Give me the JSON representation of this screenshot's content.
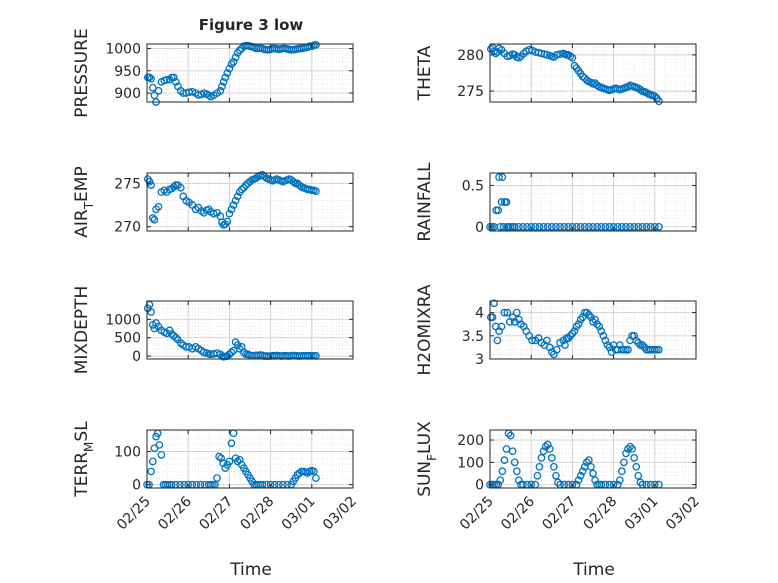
{
  "figure": {
    "title": "Figure 3 low",
    "xlabel": "Time",
    "x_ticks": [
      "02/25",
      "02/26",
      "02/27",
      "02/28",
      "03/01",
      "03/02"
    ],
    "x_tick_days": [
      0,
      1,
      2,
      3,
      4,
      5
    ],
    "x_axis_start": "02/25",
    "x_axis_end": "03/02",
    "marker_color": "#0072BD"
  },
  "chart_data": [
    {
      "type": "scatter",
      "ylabel_parts": [
        "PRESSURE"
      ],
      "ylim": [
        880,
        1010
      ],
      "yticks": [
        900,
        950,
        1000
      ],
      "x": [
        0.02,
        0.06,
        0.1,
        0.14,
        0.18,
        0.22,
        0.28,
        0.35,
        0.42,
        0.48,
        0.55,
        0.6,
        0.65,
        0.7,
        0.75,
        0.82,
        0.88,
        0.95,
        1.02,
        1.1,
        1.18,
        1.25,
        1.32,
        1.38,
        1.45,
        1.5,
        1.55,
        1.62,
        1.7,
        1.78,
        1.82,
        1.86,
        1.9,
        1.95,
        2.0,
        2.05,
        2.1,
        2.15,
        2.2,
        2.25,
        2.3,
        2.35,
        2.4,
        2.45,
        2.5,
        2.55,
        2.6,
        2.65,
        2.7,
        2.75,
        2.8,
        2.85,
        2.9,
        2.95,
        3.0,
        3.05,
        3.1,
        3.15,
        3.2,
        3.25,
        3.3,
        3.35,
        3.4,
        3.45,
        3.5,
        3.55,
        3.6,
        3.65,
        3.7,
        3.75,
        3.8,
        3.85,
        3.9,
        3.95,
        4.0,
        4.05,
        4.1
      ],
      "y": [
        935,
        935,
        932,
        912,
        895,
        880,
        905,
        925,
        928,
        930,
        930,
        935,
        935,
        925,
        915,
        905,
        900,
        900,
        902,
        903,
        900,
        896,
        897,
        900,
        898,
        895,
        892,
        895,
        900,
        905,
        915,
        925,
        935,
        945,
        955,
        965,
        970,
        980,
        990,
        996,
        1000,
        1005,
        1006,
        1006,
        1005,
        1004,
        1002,
        1000,
        1000,
        1001,
        1000,
        998,
        997,
        997,
        998,
        1000,
        1000,
        999,
        998,
        999,
        1000,
        1000,
        999,
        998,
        997,
        997,
        998,
        999,
        1000,
        1000,
        1001,
        1002,
        1003,
        1005,
        1005,
        1007,
        1008
      ]
    },
    {
      "type": "scatter",
      "ylabel_parts": [
        "THETA"
      ],
      "ylim": [
        273.5,
        281.5
      ],
      "yticks": [
        275,
        280
      ],
      "x": [
        0.02,
        0.06,
        0.1,
        0.14,
        0.18,
        0.22,
        0.28,
        0.35,
        0.42,
        0.48,
        0.55,
        0.6,
        0.65,
        0.7,
        0.75,
        0.82,
        0.88,
        0.95,
        1.02,
        1.1,
        1.18,
        1.25,
        1.32,
        1.38,
        1.45,
        1.5,
        1.55,
        1.62,
        1.7,
        1.78,
        1.82,
        1.86,
        1.9,
        1.95,
        2.0,
        2.05,
        2.1,
        2.15,
        2.2,
        2.25,
        2.3,
        2.35,
        2.4,
        2.45,
        2.5,
        2.55,
        2.6,
        2.65,
        2.7,
        2.75,
        2.8,
        2.85,
        2.9,
        2.95,
        3.0,
        3.05,
        3.1,
        3.15,
        3.2,
        3.25,
        3.3,
        3.35,
        3.4,
        3.45,
        3.5,
        3.55,
        3.6,
        3.65,
        3.7,
        3.75,
        3.8,
        3.85,
        3.9,
        3.95,
        4.0,
        4.05,
        4.1
      ],
      "y": [
        280.8,
        281.0,
        280.5,
        280.2,
        280.4,
        280.9,
        280.7,
        280.2,
        279.8,
        279.9,
        280.1,
        280.0,
        279.7,
        279.6,
        279.8,
        280.2,
        280.5,
        280.7,
        280.6,
        280.4,
        280.3,
        280.2,
        280.1,
        280.0,
        279.9,
        279.8,
        279.7,
        280.0,
        280.1,
        280.2,
        280.1,
        280.0,
        280.0,
        279.8,
        279.6,
        278.5,
        278.2,
        277.8,
        277.4,
        277.0,
        276.8,
        276.5,
        276.3,
        276.2,
        276.0,
        276.1,
        275.8,
        275.6,
        275.5,
        275.4,
        275.3,
        275.2,
        275.1,
        275.2,
        275.3,
        275.4,
        275.3,
        275.2,
        275.3,
        275.4,
        275.5,
        275.6,
        275.8,
        275.7,
        275.6,
        275.5,
        275.4,
        275.2,
        275.0,
        274.9,
        274.8,
        274.6,
        274.5,
        274.4,
        274.3,
        274.0,
        273.6
      ]
    },
    {
      "type": "scatter",
      "ylabel_parts": [
        "AIR",
        "T",
        "EMP"
      ],
      "ylim": [
        269.5,
        276.2
      ],
      "yticks": [
        270,
        275
      ],
      "x": [
        0.02,
        0.06,
        0.1,
        0.14,
        0.18,
        0.22,
        0.28,
        0.35,
        0.42,
        0.48,
        0.55,
        0.6,
        0.65,
        0.7,
        0.75,
        0.82,
        0.88,
        0.95,
        1.02,
        1.1,
        1.18,
        1.25,
        1.32,
        1.38,
        1.45,
        1.5,
        1.55,
        1.62,
        1.7,
        1.78,
        1.82,
        1.86,
        1.9,
        1.95,
        2.0,
        2.05,
        2.1,
        2.15,
        2.2,
        2.25,
        2.3,
        2.35,
        2.4,
        2.45,
        2.5,
        2.55,
        2.6,
        2.65,
        2.7,
        2.75,
        2.8,
        2.85,
        2.9,
        2.95,
        3.0,
        3.05,
        3.1,
        3.15,
        3.2,
        3.25,
        3.3,
        3.35,
        3.4,
        3.45,
        3.5,
        3.55,
        3.6,
        3.65,
        3.7,
        3.75,
        3.8,
        3.85,
        3.9,
        3.95,
        4.0,
        4.05,
        4.1
      ],
      "y": [
        275.5,
        275.2,
        274.8,
        271.0,
        270.8,
        272.0,
        272.3,
        274.0,
        274.2,
        274.0,
        274.3,
        274.4,
        274.6,
        274.8,
        274.8,
        274.5,
        273.5,
        273.0,
        272.8,
        272.5,
        272.0,
        272.2,
        271.8,
        271.6,
        271.9,
        272.0,
        271.7,
        271.5,
        271.6,
        271.2,
        270.5,
        270.2,
        270.3,
        270.6,
        271.5,
        272.0,
        272.5,
        273.0,
        273.5,
        274.0,
        274.3,
        274.5,
        274.8,
        275.0,
        275.2,
        275.4,
        275.5,
        275.6,
        275.8,
        275.9,
        276.0,
        275.8,
        275.6,
        275.5,
        275.4,
        275.3,
        275.4,
        275.5,
        275.4,
        275.3,
        275.2,
        275.3,
        275.4,
        275.5,
        275.4,
        275.2,
        275.0,
        275.0,
        274.8,
        274.6,
        274.5,
        274.4,
        274.3,
        274.3,
        274.2,
        274.2,
        274.1
      ]
    },
    {
      "type": "scatter",
      "ylabel_parts": [
        "RAINFALL"
      ],
      "ylim": [
        -0.05,
        0.65
      ],
      "yticks": [
        0,
        0.5
      ],
      "x": [
        0.0,
        0.05,
        0.1,
        0.15,
        0.2,
        0.22,
        0.25,
        0.28,
        0.3,
        0.33,
        0.36,
        0.4,
        0.42,
        0.45,
        0.5,
        0.55,
        0.6,
        0.7,
        0.8,
        0.9,
        1.0,
        1.1,
        1.2,
        1.3,
        1.4,
        1.5,
        1.6,
        1.7,
        1.8,
        1.9,
        2.0,
        2.1,
        2.2,
        2.3,
        2.4,
        2.5,
        2.6,
        2.7,
        2.8,
        2.9,
        3.0,
        3.1,
        3.2,
        3.3,
        3.4,
        3.5,
        3.6,
        3.7,
        3.8,
        3.9,
        4.0,
        4.1
      ],
      "y": [
        0,
        0,
        0,
        0.2,
        0.2,
        0.6,
        0,
        0.3,
        0.6,
        0,
        0.3,
        0.3,
        0,
        0,
        0,
        0,
        0,
        0,
        0,
        0,
        0,
        0,
        0,
        0,
        0,
        0,
        0,
        0,
        0,
        0,
        0,
        0,
        0,
        0,
        0,
        0,
        0,
        0,
        0,
        0,
        0,
        0,
        0,
        0,
        0,
        0,
        0,
        0,
        0,
        0,
        0,
        0
      ]
    },
    {
      "type": "scatter",
      "ylabel_parts": [
        "MIXDEPTH"
      ],
      "ylim": [
        -80,
        1500
      ],
      "yticks": [
        0,
        500,
        1000
      ],
      "x": [
        0.02,
        0.06,
        0.1,
        0.14,
        0.18,
        0.22,
        0.28,
        0.35,
        0.42,
        0.48,
        0.55,
        0.6,
        0.65,
        0.7,
        0.75,
        0.82,
        0.88,
        0.95,
        1.02,
        1.1,
        1.18,
        1.25,
        1.32,
        1.38,
        1.45,
        1.5,
        1.55,
        1.62,
        1.7,
        1.78,
        1.82,
        1.86,
        1.9,
        1.95,
        2.0,
        2.05,
        2.1,
        2.15,
        2.2,
        2.25,
        2.3,
        2.35,
        2.4,
        2.45,
        2.5,
        2.55,
        2.6,
        2.65,
        2.7,
        2.75,
        2.8,
        2.85,
        2.9,
        2.95,
        3.0,
        3.05,
        3.1,
        3.15,
        3.2,
        3.25,
        3.3,
        3.35,
        3.4,
        3.45,
        3.5,
        3.55,
        3.6,
        3.65,
        3.7,
        3.75,
        3.8,
        3.85,
        3.9,
        3.95,
        4.0,
        4.05,
        4.1
      ],
      "y": [
        1300,
        1400,
        1200,
        850,
        750,
        900,
        800,
        700,
        650,
        620,
        700,
        600,
        550,
        500,
        450,
        350,
        300,
        250,
        250,
        200,
        250,
        200,
        150,
        100,
        80,
        60,
        50,
        60,
        80,
        50,
        0,
        -20,
        -10,
        0,
        50,
        100,
        150,
        380,
        300,
        200,
        250,
        100,
        50,
        50,
        20,
        10,
        10,
        20,
        10,
        30,
        20,
        0,
        0,
        0,
        0,
        10,
        5,
        15,
        10,
        0,
        5,
        10,
        5,
        0,
        10,
        15,
        10,
        5,
        0,
        5,
        10,
        10,
        5,
        10,
        5,
        10,
        5
      ]
    },
    {
      "type": "scatter",
      "ylabel_parts": [
        "H2OMIXRA"
      ],
      "ylim": [
        3.0,
        4.25
      ],
      "yticks": [
        3,
        3.5,
        4
      ],
      "x": [
        0.02,
        0.06,
        0.1,
        0.14,
        0.18,
        0.22,
        0.28,
        0.35,
        0.42,
        0.48,
        0.55,
        0.6,
        0.65,
        0.7,
        0.75,
        0.82,
        0.88,
        0.95,
        1.02,
        1.1,
        1.18,
        1.25,
        1.32,
        1.38,
        1.45,
        1.5,
        1.55,
        1.62,
        1.7,
        1.78,
        1.82,
        1.86,
        1.9,
        1.95,
        2.0,
        2.05,
        2.1,
        2.15,
        2.2,
        2.25,
        2.3,
        2.35,
        2.4,
        2.45,
        2.5,
        2.55,
        2.6,
        2.65,
        2.7,
        2.75,
        2.8,
        2.85,
        2.9,
        2.95,
        3.0,
        3.05,
        3.1,
        3.15,
        3.2,
        3.25,
        3.3,
        3.35,
        3.4,
        3.45,
        3.5,
        3.55,
        3.6,
        3.65,
        3.7,
        3.75,
        3.8,
        3.85,
        3.9,
        3.95,
        4.0,
        4.05,
        4.1
      ],
      "y": [
        3.9,
        3.9,
        4.2,
        3.7,
        3.4,
        3.6,
        3.7,
        4.0,
        4.0,
        3.8,
        3.9,
        3.8,
        4.0,
        3.85,
        3.75,
        3.7,
        3.6,
        3.5,
        3.4,
        3.4,
        3.45,
        3.35,
        3.3,
        3.4,
        3.25,
        3.15,
        3.1,
        3.2,
        3.35,
        3.4,
        3.3,
        3.45,
        3.45,
        3.5,
        3.55,
        3.6,
        3.7,
        3.75,
        3.85,
        3.9,
        4.0,
        4.0,
        3.95,
        3.9,
        3.8,
        3.85,
        3.75,
        3.7,
        3.6,
        3.5,
        3.4,
        3.3,
        3.25,
        3.15,
        3.3,
        3.2,
        3.2,
        3.3,
        3.2,
        3.2,
        3.2,
        3.2,
        3.4,
        3.5,
        3.5,
        3.4,
        3.35,
        3.3,
        3.3,
        3.25,
        3.2,
        3.2,
        3.2,
        3.2,
        3.2,
        3.2,
        3.2
      ]
    },
    {
      "type": "scatter",
      "ylabel_parts": [
        "TERR",
        "M",
        "SL"
      ],
      "ylim": [
        -10,
        165
      ],
      "yticks": [
        0,
        100
      ],
      "x": [
        0.0,
        0.05,
        0.1,
        0.14,
        0.18,
        0.22,
        0.26,
        0.3,
        0.35,
        0.4,
        0.45,
        0.5,
        0.55,
        0.6,
        0.7,
        0.8,
        0.9,
        1.0,
        1.1,
        1.2,
        1.3,
        1.4,
        1.5,
        1.55,
        1.6,
        1.65,
        1.7,
        1.75,
        1.8,
        1.85,
        1.9,
        1.95,
        2.0,
        2.05,
        2.1,
        2.15,
        2.2,
        2.25,
        2.3,
        2.35,
        2.4,
        2.45,
        2.5,
        2.55,
        2.6,
        2.65,
        2.7,
        2.75,
        2.8,
        2.9,
        3.0,
        3.1,
        3.2,
        3.3,
        3.4,
        3.5,
        3.55,
        3.6,
        3.65,
        3.7,
        3.75,
        3.8,
        3.85,
        3.9,
        3.95,
        4.0,
        4.05,
        4.1
      ],
      "y": [
        0,
        0,
        40,
        70,
        110,
        145,
        155,
        120,
        90,
        0,
        0,
        0,
        0,
        0,
        0,
        0,
        0,
        0,
        0,
        0,
        0,
        0,
        0,
        0,
        0,
        0,
        20,
        85,
        80,
        65,
        50,
        60,
        70,
        125,
        155,
        80,
        70,
        75,
        60,
        50,
        40,
        30,
        20,
        10,
        0,
        0,
        0,
        0,
        0,
        0,
        0,
        0,
        0,
        0,
        0,
        0,
        10,
        20,
        30,
        35,
        40,
        40,
        38,
        35,
        40,
        42,
        40,
        20
      ]
    },
    {
      "type": "scatter",
      "ylabel_parts": [
        "SUN",
        "F",
        "LUX"
      ],
      "ylim": [
        -15,
        245
      ],
      "yticks": [
        0,
        100,
        200
      ],
      "x": [
        0.0,
        0.05,
        0.1,
        0.15,
        0.2,
        0.25,
        0.3,
        0.35,
        0.4,
        0.45,
        0.5,
        0.55,
        0.6,
        0.65,
        0.7,
        0.75,
        0.8,
        0.9,
        1.0,
        1.1,
        1.15,
        1.2,
        1.25,
        1.3,
        1.35,
        1.4,
        1.45,
        1.5,
        1.55,
        1.6,
        1.65,
        1.7,
        1.8,
        1.9,
        2.0,
        2.1,
        2.15,
        2.2,
        2.25,
        2.3,
        2.35,
        2.4,
        2.45,
        2.5,
        2.55,
        2.6,
        2.65,
        2.7,
        2.8,
        2.9,
        3.0,
        3.1,
        3.15,
        3.2,
        3.25,
        3.3,
        3.35,
        3.4,
        3.45,
        3.5,
        3.55,
        3.6,
        3.65,
        3.7,
        3.8,
        3.9,
        4.0,
        4.1
      ],
      "y": [
        0,
        0,
        0,
        0,
        0,
        20,
        60,
        110,
        160,
        230,
        220,
        150,
        100,
        60,
        20,
        0,
        0,
        0,
        0,
        0,
        40,
        80,
        120,
        150,
        170,
        180,
        160,
        120,
        80,
        40,
        10,
        0,
        0,
        0,
        0,
        0,
        20,
        40,
        60,
        80,
        100,
        110,
        80,
        50,
        20,
        0,
        0,
        0,
        0,
        0,
        0,
        0,
        20,
        60,
        100,
        140,
        160,
        170,
        160,
        120,
        80,
        40,
        10,
        0,
        0,
        0,
        0,
        0
      ]
    }
  ]
}
